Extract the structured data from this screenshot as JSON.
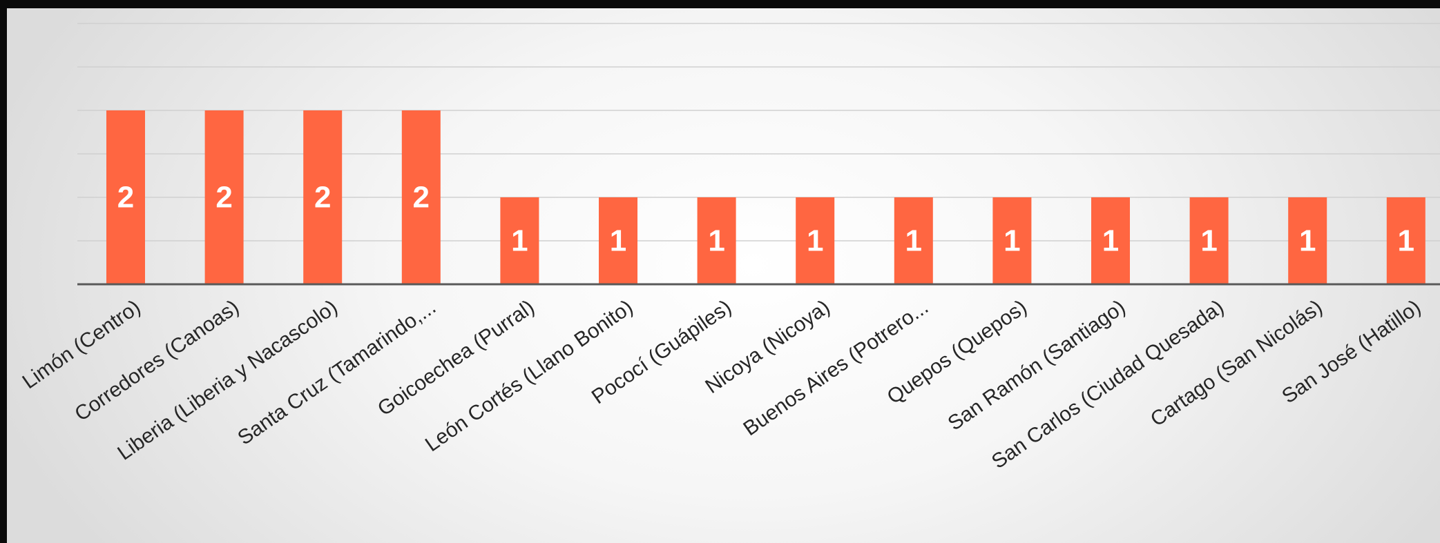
{
  "chart_data": {
    "type": "bar",
    "title": "",
    "xlabel": "",
    "ylabel": "",
    "categories": [
      "Limón (Centro)",
      "Corredores (Canoas)",
      "Liberia (Liberia y Nacascolo)",
      "Santa Cruz (Tamarindo,...",
      "Goicoechea (Purral)",
      "León Cortés (Llano Bonito)",
      "Pococí (Guápiles)",
      "Nicoya (Nicoya)",
      "Buenos Aires (Potrero...",
      "Quepos (Quepos)",
      "San Ramón (Santiago)",
      "San Carlos (Ciudad Quesada)",
      "Cartago (San Nicolás)",
      "San José (Hatillo)"
    ],
    "values": [
      2,
      2,
      2,
      2,
      1,
      1,
      1,
      1,
      1,
      1,
      1,
      1,
      1,
      1
    ],
    "ylim": [
      0,
      5
    ],
    "grid": true,
    "legend": "none",
    "data_labels": true,
    "colors": {
      "bar": "#ff6641",
      "bar_label": "#ffffff",
      "axis": "#595959",
      "grid": "#d0d0d0",
      "tick_label": "#262626"
    }
  }
}
